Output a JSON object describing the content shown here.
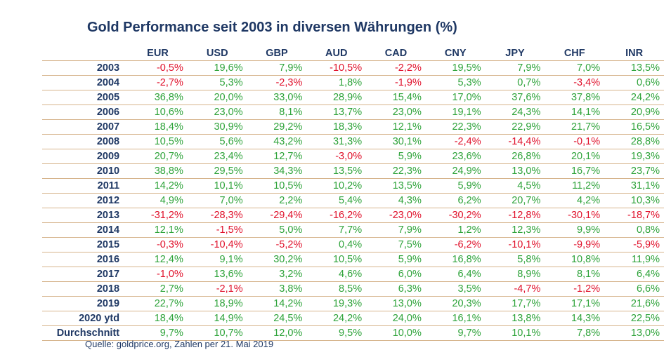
{
  "chart_data": {
    "type": "table",
    "title": "Gold Performance seit 2003 in diversen Währungen (%)",
    "columns": [
      "EUR",
      "USD",
      "GBP",
      "AUD",
      "CAD",
      "CNY",
      "JPY",
      "CHF",
      "INR"
    ],
    "rows": [
      {
        "label": "2003",
        "values": [
          "-0,5%",
          "19,6%",
          "7,9%",
          "-10,5%",
          "-2,2%",
          "19,5%",
          "7,9%",
          "7,0%",
          "13,5%"
        ]
      },
      {
        "label": "2004",
        "values": [
          "-2,7%",
          "5,3%",
          "-2,3%",
          "1,8%",
          "-1,9%",
          "5,3%",
          "0,7%",
          "-3,4%",
          "0,6%"
        ]
      },
      {
        "label": "2005",
        "values": [
          "36,8%",
          "20,0%",
          "33,0%",
          "28,9%",
          "15,4%",
          "17,0%",
          "37,6%",
          "37,8%",
          "24,2%"
        ]
      },
      {
        "label": "2006",
        "values": [
          "10,6%",
          "23,0%",
          "8,1%",
          "13,7%",
          "23,0%",
          "19,1%",
          "24,3%",
          "14,1%",
          "20,9%"
        ]
      },
      {
        "label": "2007",
        "values": [
          "18,4%",
          "30,9%",
          "29,2%",
          "18,3%",
          "12,1%",
          "22,3%",
          "22,9%",
          "21,7%",
          "16,5%"
        ]
      },
      {
        "label": "2008",
        "values": [
          "10,5%",
          "5,6%",
          "43,2%",
          "31,3%",
          "30,1%",
          "-2,4%",
          "-14,4%",
          "-0,1%",
          "28,8%"
        ]
      },
      {
        "label": "2009",
        "values": [
          "20,7%",
          "23,4%",
          "12,7%",
          "-3,0%",
          "5,9%",
          "23,6%",
          "26,8%",
          "20,1%",
          "19,3%"
        ]
      },
      {
        "label": "2010",
        "values": [
          "38,8%",
          "29,5%",
          "34,3%",
          "13,5%",
          "22,3%",
          "24,9%",
          "13,0%",
          "16,7%",
          "23,7%"
        ]
      },
      {
        "label": "2011",
        "values": [
          "14,2%",
          "10,1%",
          "10,5%",
          "10,2%",
          "13,5%",
          "5,9%",
          "4,5%",
          "11,2%",
          "31,1%"
        ]
      },
      {
        "label": "2012",
        "values": [
          "4,9%",
          "7,0%",
          "2,2%",
          "5,4%",
          "4,3%",
          "6,2%",
          "20,7%",
          "4,2%",
          "10,3%"
        ]
      },
      {
        "label": "2013",
        "values": [
          "-31,2%",
          "-28,3%",
          "-29,4%",
          "-16,2%",
          "-23,0%",
          "-30,2%",
          "-12,8%",
          "-30,1%",
          "-18,7%"
        ]
      },
      {
        "label": "2014",
        "values": [
          "12,1%",
          "-1,5%",
          "5,0%",
          "7,7%",
          "7,9%",
          "1,2%",
          "12,3%",
          "9,9%",
          "0,8%"
        ]
      },
      {
        "label": "2015",
        "values": [
          "-0,3%",
          "-10,4%",
          "-5,2%",
          "0,4%",
          "7,5%",
          "-6,2%",
          "-10,1%",
          "-9,9%",
          "-5,9%"
        ]
      },
      {
        "label": "2016",
        "values": [
          "12,4%",
          "9,1%",
          "30,2%",
          "10,5%",
          "5,9%",
          "16,8%",
          "5,8%",
          "10,8%",
          "11,9%"
        ]
      },
      {
        "label": "2017",
        "values": [
          "-1,0%",
          "13,6%",
          "3,2%",
          "4,6%",
          "6,0%",
          "6,4%",
          "8,9%",
          "8,1%",
          "6,4%"
        ]
      },
      {
        "label": "2018",
        "values": [
          "2,7%",
          "-2,1%",
          "3,8%",
          "8,5%",
          "6,3%",
          "3,5%",
          "-4,7%",
          "-1,2%",
          "6,6%"
        ]
      },
      {
        "label": "2019",
        "values": [
          "22,7%",
          "18,9%",
          "14,2%",
          "19,3%",
          "13,0%",
          "20,3%",
          "17,7%",
          "17,1%",
          "21,6%"
        ]
      },
      {
        "label": "2020 ytd",
        "values": [
          "18,4%",
          "14,9%",
          "24,5%",
          "24,2%",
          "24,0%",
          "16,1%",
          "13,8%",
          "14,3%",
          "22,5%"
        ]
      },
      {
        "label": "Durchschnitt",
        "values": [
          "9,7%",
          "10,7%",
          "12,0%",
          "9,5%",
          "10,0%",
          "9,7%",
          "10,1%",
          "7,8%",
          "13,0%"
        ]
      }
    ],
    "source": "Quelle: goldprice.org, Zahlen per 21. Mai 2019"
  },
  "colors": {
    "header_text": "#1f3864",
    "positive": "#2ea33a",
    "negative": "#e0112b",
    "row_rule": "#d6b48c"
  }
}
